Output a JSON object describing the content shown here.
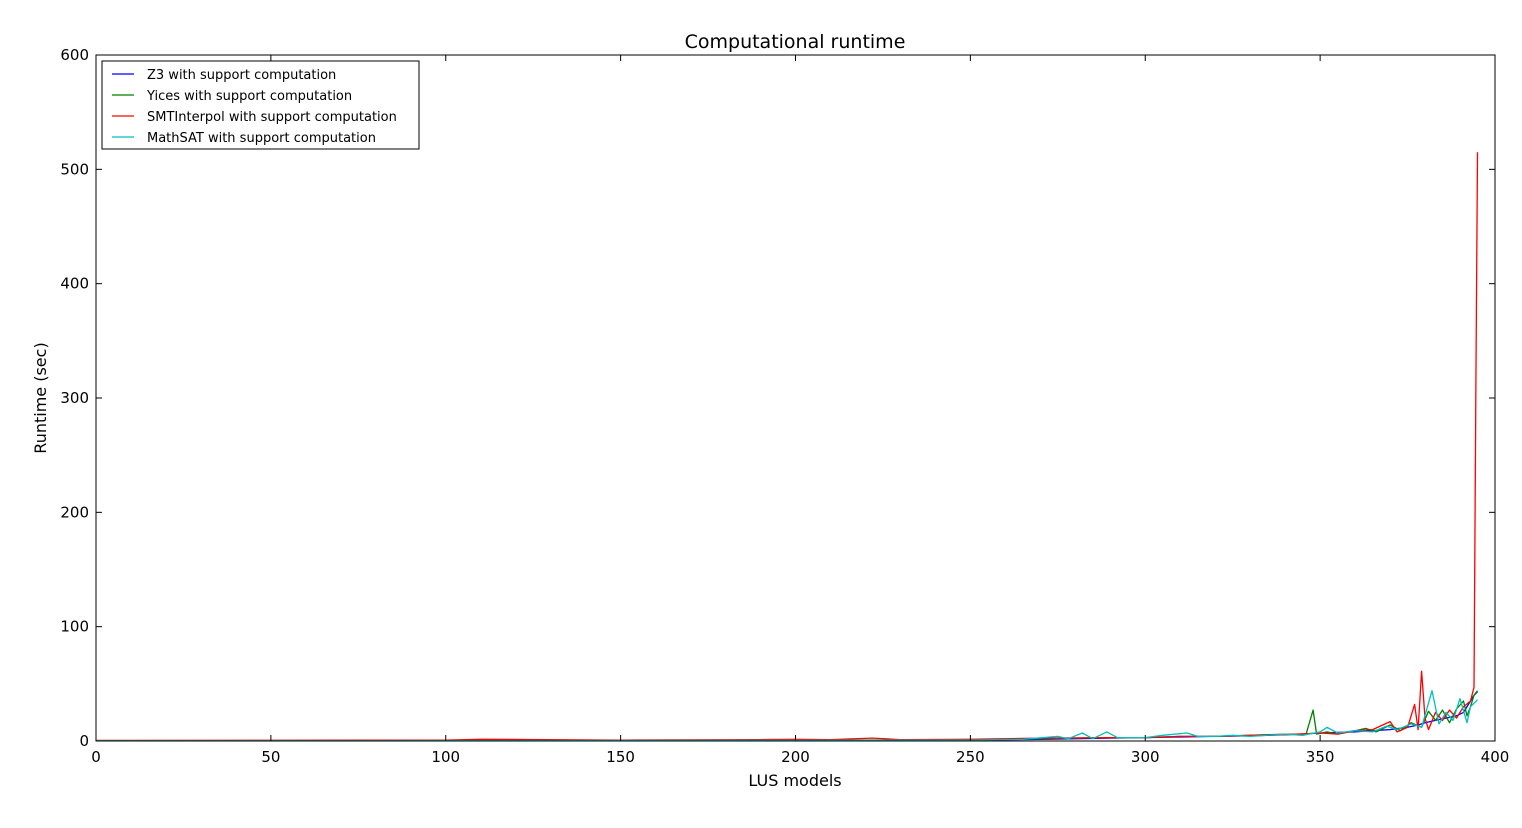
{
  "chart_data": {
    "type": "line",
    "title": "Computational runtime",
    "xlabel": "LUS models",
    "ylabel": "Runtime (sec)",
    "xlim": [
      0,
      400
    ],
    "ylim": [
      0,
      600
    ],
    "xticks": [
      "0",
      "50",
      "100",
      "150",
      "200",
      "250",
      "300",
      "350",
      "400"
    ],
    "yticks": [
      "0",
      "100",
      "200",
      "300",
      "400",
      "500",
      "600"
    ],
    "grid": false,
    "legend_position": "top-left",
    "series": [
      {
        "name": "Z3 with support computation",
        "color": "#0000ff",
        "x": [
          0,
          50,
          100,
          150,
          200,
          250,
          270,
          290,
          300,
          310,
          320,
          330,
          340,
          345,
          350,
          355,
          360,
          365,
          370,
          375,
          378,
          380,
          383,
          386,
          389,
          391,
          393,
          394,
          395
        ],
        "y": [
          0.3,
          0.3,
          0.4,
          0.5,
          0.6,
          0.8,
          1.5,
          2.5,
          3,
          3.5,
          4,
          4.5,
          5.5,
          6,
          7,
          7.5,
          8,
          9,
          10,
          12,
          14,
          16,
          18,
          20,
          22,
          25,
          35,
          40,
          43
        ]
      },
      {
        "name": "Yices with support computation",
        "color": "#008000",
        "x": [
          0,
          50,
          100,
          150,
          200,
          250,
          270,
          290,
          300,
          310,
          320,
          330,
          340,
          346,
          348,
          349,
          352,
          355,
          360,
          363,
          366,
          370,
          373,
          376,
          379,
          381,
          383,
          385,
          387,
          389,
          391,
          392,
          393,
          394,
          395
        ],
        "y": [
          0.3,
          0.3,
          0.4,
          0.5,
          0.7,
          1,
          2,
          3,
          3,
          4,
          4,
          5,
          6,
          6,
          27,
          6,
          8,
          6,
          9,
          11,
          8,
          14,
          9,
          16,
          12,
          26,
          18,
          27,
          16,
          28,
          35,
          22,
          30,
          40,
          44
        ]
      },
      {
        "name": "SMTInterpol with support computation",
        "color": "#ff0000",
        "x": [
          0,
          50,
          100,
          110,
          150,
          190,
          200,
          210,
          222,
          230,
          250,
          270,
          290,
          300,
          310,
          320,
          330,
          340,
          350,
          355,
          360,
          365,
          370,
          372,
          375,
          377,
          378,
          379,
          380,
          381,
          383,
          385,
          387,
          389,
          391,
          393,
          394,
          394.5,
          395
        ],
        "y": [
          0.5,
          0.6,
          0.8,
          1.5,
          0.8,
          1.2,
          1.5,
          1.2,
          2.5,
          1.2,
          1.5,
          2.5,
          3,
          3,
          4,
          4,
          5,
          5.5,
          7,
          6,
          9,
          10,
          17,
          8,
          12,
          32,
          10,
          61,
          20,
          10,
          25,
          18,
          27,
          20,
          30,
          35,
          47,
          300,
          515
        ]
      },
      {
        "name": "MathSAT with support computation",
        "color": "#00bfbf",
        "x": [
          0,
          50,
          100,
          150,
          200,
          250,
          265,
          275,
          278,
          282,
          285,
          289,
          292,
          300,
          305,
          312,
          315,
          320,
          325,
          330,
          340,
          345,
          350,
          352,
          355,
          360,
          365,
          369,
          372,
          376,
          379,
          382,
          384,
          386,
          388,
          390,
          392,
          393,
          394,
          395
        ],
        "y": [
          0.2,
          0.2,
          0.3,
          0.4,
          0.5,
          0.8,
          1.5,
          4,
          2,
          7,
          2,
          8,
          3,
          3,
          5,
          7,
          4,
          4,
          5,
          4,
          6,
          5,
          8,
          12,
          7,
          9,
          8,
          13,
          10,
          15,
          12,
          44,
          15,
          25,
          18,
          37,
          16,
          30,
          33,
          36
        ]
      }
    ]
  }
}
